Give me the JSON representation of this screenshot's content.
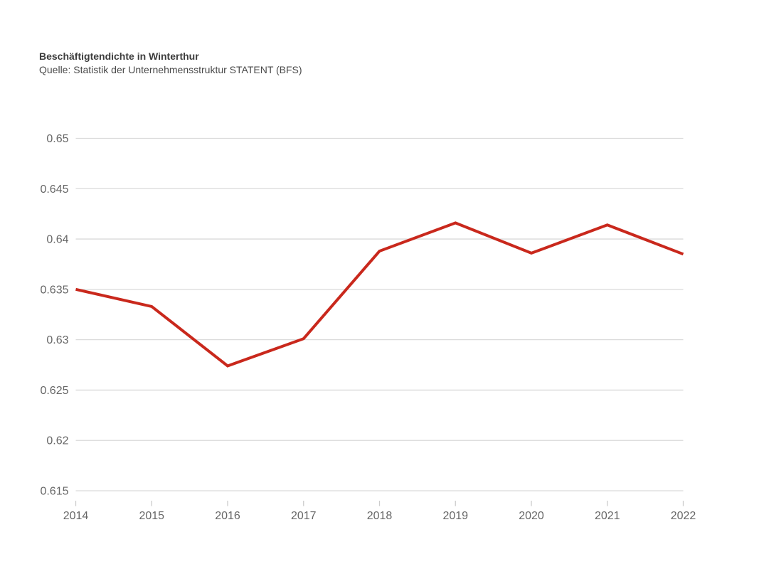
{
  "header": {
    "title": "Beschäftigtendichte in Winterthur",
    "subtitle": "Quelle: Statistik der Unternehmensstruktur STATENT (BFS)"
  },
  "chart_data": {
    "type": "line",
    "title": "Beschäftigtendichte in Winterthur",
    "subtitle": "Quelle: Statistik der Unternehmensstruktur STATENT (BFS)",
    "categories": [
      "2014",
      "2015",
      "2016",
      "2017",
      "2018",
      "2019",
      "2020",
      "2021",
      "2022"
    ],
    "series": [
      {
        "values": [
          0.635,
          0.6333,
          0.6274,
          0.6301,
          0.6388,
          0.6416,
          0.6386,
          0.6414,
          0.6385
        ],
        "color": "#c9281c"
      }
    ],
    "xlabel": "",
    "ylabel": "",
    "ylim": [
      0.615,
      0.65
    ],
    "yticks": [
      0.65,
      0.645,
      0.64,
      0.635,
      0.63,
      0.625,
      0.62,
      0.615
    ],
    "ytick_labels": [
      "0.65",
      "0.645",
      "0.64",
      "0.635",
      "0.63",
      "0.625",
      "0.62",
      "0.615"
    ],
    "grid": true,
    "legend_position": "none"
  },
  "colors": {
    "background": "#ffffff",
    "line": "#c9281c",
    "gridline": "#dadada",
    "tick": "#cccccc",
    "axis_label": "#666666",
    "title_text": "#3d3d3d",
    "subtitle_text": "#4a4a4a"
  }
}
